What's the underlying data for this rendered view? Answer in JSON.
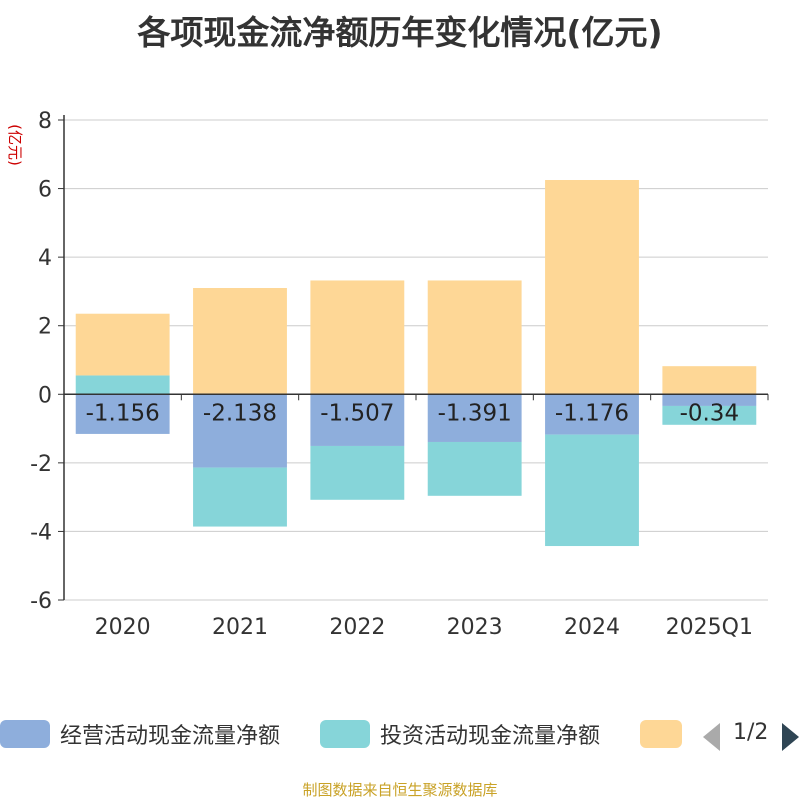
{
  "chart_data": {
    "type": "bar",
    "stacked": true,
    "title": "各项现金流净额历年变化情况(亿元)",
    "ylabel": "(亿元)",
    "ylim": [
      -6,
      8
    ],
    "yticks": [
      8,
      6,
      4,
      2,
      0,
      -2,
      -4,
      -6
    ],
    "grid": true,
    "legend_position": "bottom",
    "categories": [
      "2020",
      "2021",
      "2022",
      "2023",
      "2024",
      "2025Q1"
    ],
    "series": [
      {
        "name": "经营活动现金流量净额",
        "color": "#8eaedc",
        "values": [
          -1.156,
          -2.138,
          -1.507,
          -1.391,
          -1.176,
          -0.34
        ],
        "labels": [
          "-1.156",
          "-2.138",
          "-1.507",
          "-1.391",
          "-1.176",
          "-0.34"
        ]
      },
      {
        "name": "投资活动现金流量净额",
        "color": "#86d5d9",
        "values": [
          0.55,
          -1.72,
          -1.57,
          -1.57,
          -3.25,
          -0.55
        ]
      },
      {
        "name": "",
        "color": "#fed796",
        "values": [
          1.8,
          3.1,
          3.32,
          3.32,
          6.25,
          0.82
        ]
      }
    ]
  },
  "legend": {
    "items": [
      {
        "label": "经营活动现金流量净额",
        "color": "#8eaedc"
      },
      {
        "label": "投资活动现金流量净额",
        "color": "#86d5d9"
      },
      {
        "label": "",
        "color": "#fed796"
      }
    ],
    "pager": "1/2",
    "prev_icon": "triangle-left-icon",
    "next_icon": "triangle-right-icon"
  },
  "footer": "制图数据来自恒生聚源数据库"
}
